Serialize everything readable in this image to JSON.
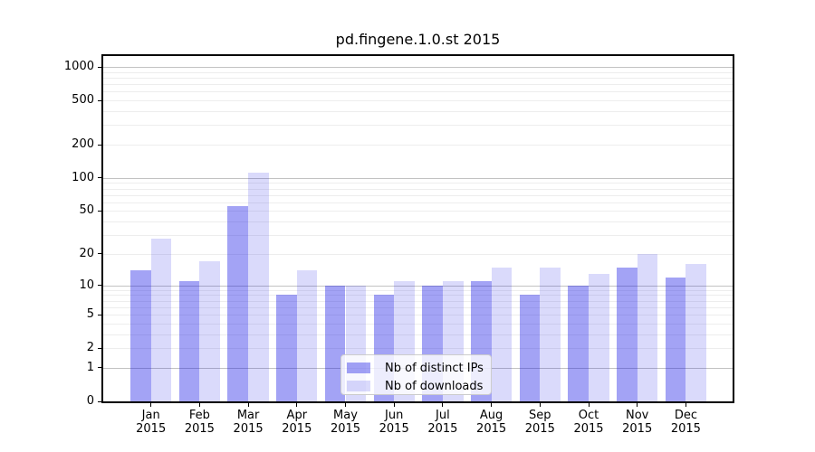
{
  "title": "pd.fingene.1.0.st 2015",
  "colors": {
    "series_ips": "rgba(25,25,230,0.40)",
    "series_downloads": "rgba(25,25,230,0.16)",
    "grid_major": "#c2c2c2",
    "grid_minor": "#ededed",
    "axis": "#000000",
    "legend_border": "#cccccc"
  },
  "legend": {
    "entries": [
      {
        "label": "Nb of distinct IPs"
      },
      {
        "label": "Nb of downloads"
      }
    ]
  },
  "chart_data": {
    "type": "bar",
    "title": "pd.fingene.1.0.st 2015",
    "categories": [
      "Jan",
      "Feb",
      "Mar",
      "Apr",
      "May",
      "Jun",
      "Jul",
      "Aug",
      "Sep",
      "Oct",
      "Nov",
      "Dec"
    ],
    "year_label": "2015",
    "series": [
      {
        "name": "Nb of distinct IPs",
        "values": [
          14,
          11,
          56,
          8,
          10,
          8,
          10,
          11,
          8,
          10,
          15,
          12
        ]
      },
      {
        "name": "Nb of downloads",
        "values": [
          28,
          17,
          112,
          14,
          10,
          11,
          11,
          15,
          15,
          13,
          20,
          16
        ]
      }
    ],
    "xlabel": "",
    "ylabel": "",
    "yscale": "log1p",
    "yticks": [
      0,
      1,
      2,
      5,
      10,
      20,
      50,
      100,
      200,
      500,
      1000
    ],
    "ylim": [
      0,
      1275
    ],
    "grid": "horizontal major+minor",
    "legend_position": "lower center inside"
  }
}
